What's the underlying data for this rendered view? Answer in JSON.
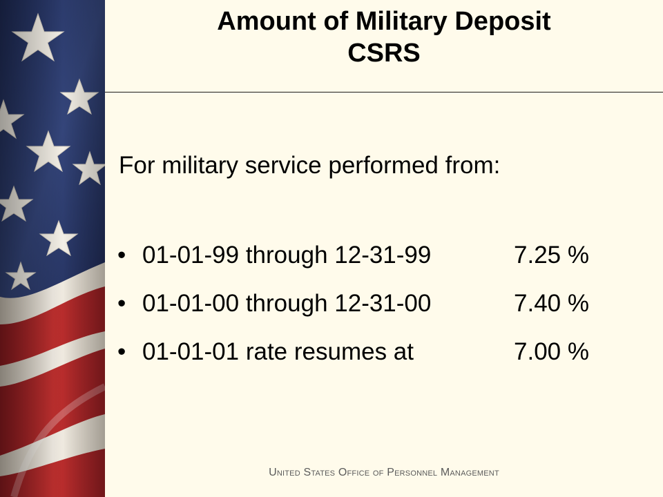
{
  "slide": {
    "title_line_1": "Amount of Military Deposit",
    "title_line_2": "CSRS",
    "intro": "For military service performed from:",
    "rates": [
      {
        "period": "01-01-99 through 12-31-99",
        "rate": "7.25 %"
      },
      {
        "period": "01-01-00 through 12-31-00",
        "rate": "7.40 %"
      },
      {
        "period": "01-01-01 rate resumes at",
        "rate": "7.00 %"
      }
    ],
    "bullet_symbol": "•",
    "footer": "United States Office of Personnel Management"
  },
  "colors": {
    "background": "#fffbeb",
    "flag_blue": "#2c3a6a",
    "flag_red": "#b3262c",
    "flag_white": "#f2ede4"
  }
}
